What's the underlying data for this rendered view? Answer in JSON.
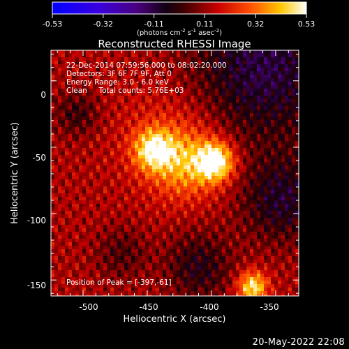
{
  "colorbar": {
    "ticks": [
      "-0.53",
      "-0.32",
      "-0.11",
      "0.11",
      "0.32",
      "0.53"
    ],
    "unit_parts": [
      "(photons cm",
      "-2",
      " s",
      "-1",
      " asec",
      "-2",
      ")"
    ]
  },
  "title": "Reconstructed RHESSI Image",
  "info": {
    "line1": "22-Dec-2014 07:59:56.000 to 08:02:20.000",
    "line2": "Detectors: 3F 6F 7F 9F, Att 0",
    "line3": "Energy Range: 3.0 - 6.0 keV",
    "line4": "Clean     Total counts: 5.76E+03",
    "peak": "Position of Peak = [-397,-61]"
  },
  "axes": {
    "xlabel": "Heliocentric X (arcsec)",
    "ylabel": "Heliocentric Y (arcsec)",
    "xticks": [
      "-500",
      "-450",
      "-400",
      "-350"
    ],
    "xtick_values": [
      -500,
      -450,
      -400,
      -350
    ],
    "yticks": [
      "0",
      "-50",
      "-100",
      "-150"
    ],
    "ytick_values": [
      0,
      -50,
      -100,
      -150
    ],
    "xlim": [
      -525,
      -332
    ],
    "ylim": [
      -162,
      23
    ]
  },
  "image": {
    "peak_x": -397,
    "peak_y": -61,
    "colormap": [
      "#0000ff",
      "#5a00c8",
      "#000000",
      "#8c0000",
      "#ff2a00",
      "#ffae00",
      "#ffffff"
    ]
  },
  "footer": "20-May-2022 22:08"
}
